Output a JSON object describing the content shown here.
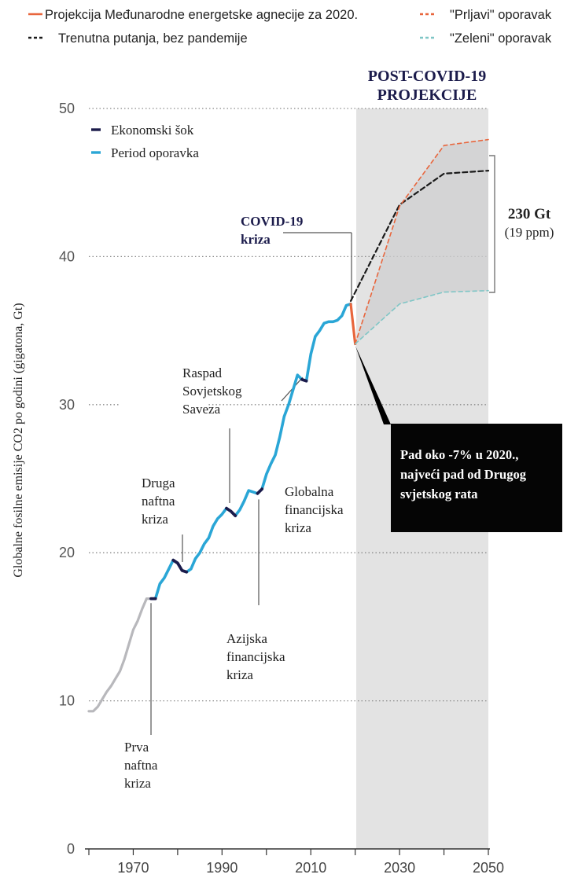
{
  "chart_data": {
    "type": "line",
    "ylabel": "Globalne fosilne emisije CO2 po godini (gigatona, Gt)",
    "ylim": [
      0,
      50
    ],
    "xlim": [
      1960,
      2050
    ],
    "y_ticks": [
      "0",
      "10",
      "20",
      "30",
      "40",
      "50"
    ],
    "x_ticks": [
      "1970",
      "1990",
      "2010",
      "2030",
      "2050"
    ],
    "grid": "horizontal dotted",
    "top_legend": [
      {
        "label": "Projekcija Međunarodne energetske agnecije za 2020.",
        "color": "#e8663d",
        "style": "solid"
      },
      {
        "label": "Trenutna putanja, bez pandemije",
        "color": "#1a1a1a",
        "style": "dashed"
      },
      {
        "label": "\"Prljavi\" oporavak",
        "color": "#e8663d",
        "style": "dashed"
      },
      {
        "label": "\"Zeleni\" oporavak",
        "color": "#7fc6c6",
        "style": "dashed"
      }
    ],
    "inner_legend": [
      {
        "label": "Ekonomski šok",
        "color": "#1b1b4b"
      },
      {
        "label": "Period oporavka",
        "color": "#2aa6d6"
      }
    ],
    "colors": {
      "historical": "#b8b8bc",
      "recovery": "#2aa6d6",
      "shock": "#1b1b4b",
      "projection_2020": "#e8663d",
      "dirty": "#e8663d",
      "trend": "#1a1a1a",
      "green": "#7fc6c6",
      "shade": "#e3e3e3"
    },
    "historical": {
      "x": [
        1960,
        1961,
        1962,
        1963,
        1964,
        1965,
        1966,
        1967,
        1968,
        1969,
        1970,
        1971,
        1972,
        1973,
        1974
      ],
      "y": [
        9.3,
        9.3,
        9.6,
        10.1,
        10.6,
        11.0,
        11.5,
        12.0,
        12.8,
        13.8,
        14.8,
        15.4,
        16.2,
        16.9,
        16.9
      ]
    },
    "recovery_series": [
      {
        "x": [
          1975,
          1976,
          1977,
          1978,
          1979
        ],
        "y": [
          16.9,
          17.9,
          18.3,
          18.9,
          19.5
        ]
      },
      {
        "x": [
          1982,
          1983,
          1984,
          1985,
          1986,
          1987,
          1988,
          1989,
          1990,
          1991
        ],
        "y": [
          18.7,
          18.9,
          19.6,
          20.0,
          20.6,
          21.0,
          21.8,
          22.3,
          22.6,
          23.0
        ]
      },
      {
        "x": [
          1993,
          1994,
          1995,
          1996,
          1997,
          1998
        ],
        "y": [
          22.5,
          22.9,
          23.5,
          24.2,
          24.1,
          24.0
        ]
      },
      {
        "x": [
          1999,
          2000,
          2001,
          2002,
          2003,
          2004,
          2005,
          2006,
          2007,
          2008
        ],
        "y": [
          24.3,
          25.3,
          26.0,
          26.6,
          27.8,
          29.2,
          30.0,
          31.0,
          32.0,
          31.7
        ]
      },
      {
        "x": [
          2009,
          2010,
          2011,
          2012,
          2013,
          2014,
          2015,
          2016,
          2017,
          2018,
          2019
        ],
        "y": [
          31.6,
          33.4,
          34.6,
          35.0,
          35.5,
          35.6,
          35.6,
          35.7,
          36.0,
          36.7,
          36.8
        ]
      }
    ],
    "shock_series": [
      {
        "x": [
          1974,
          1975
        ],
        "y": [
          16.9,
          16.9
        ]
      },
      {
        "x": [
          1979,
          1980,
          1981,
          1982
        ],
        "y": [
          19.5,
          19.3,
          18.8,
          18.7
        ]
      },
      {
        "x": [
          1991,
          1992,
          1993
        ],
        "y": [
          23.0,
          22.8,
          22.5
        ]
      },
      {
        "x": [
          1998,
          1999
        ],
        "y": [
          24.0,
          24.3
        ]
      },
      {
        "x": [
          2008,
          2009
        ],
        "y": [
          31.7,
          31.6
        ]
      }
    ],
    "projection_2020": {
      "x": [
        2019,
        2020
      ],
      "y": [
        36.8,
        34.1
      ]
    },
    "trend_no_pandemic": {
      "x": [
        2019,
        2030,
        2040,
        2050
      ],
      "y": [
        37.0,
        43.5,
        45.6,
        45.8
      ]
    },
    "dirty_recovery": {
      "x": [
        2020,
        2030,
        2040,
        2050
      ],
      "y": [
        34.1,
        43.4,
        47.5,
        47.9
      ]
    },
    "green_recovery": {
      "x": [
        2020,
        2030,
        2040,
        2050
      ],
      "y": [
        34.1,
        36.8,
        37.6,
        37.7
      ]
    },
    "annotations": [
      {
        "id": "post-covid",
        "lines": [
          "POST-COVID-19",
          "PROJEKCIJE"
        ]
      },
      {
        "id": "covid",
        "lines": [
          "COVID-19",
          "kriza"
        ]
      },
      {
        "id": "gt",
        "lines": [
          "230 Gt",
          "(19 ppm)"
        ]
      },
      {
        "id": "drop",
        "lines": [
          "Pad oko -7% u 2020.,",
          "najveći pad od Drugog",
          "svjetskog rata"
        ]
      },
      {
        "id": "raspad",
        "lines": [
          "Raspad",
          "Sovjetskog",
          "Saveza"
        ]
      },
      {
        "id": "druga",
        "lines": [
          "Druga",
          "naftna",
          "kriza"
        ]
      },
      {
        "id": "globalna",
        "lines": [
          "Globalna",
          "financijska",
          "kriza"
        ]
      },
      {
        "id": "azijska",
        "lines": [
          "Azijska",
          "financijska",
          "kriza"
        ]
      },
      {
        "id": "prva",
        "lines": [
          "Prva",
          "naftna",
          "kriza"
        ]
      }
    ]
  }
}
